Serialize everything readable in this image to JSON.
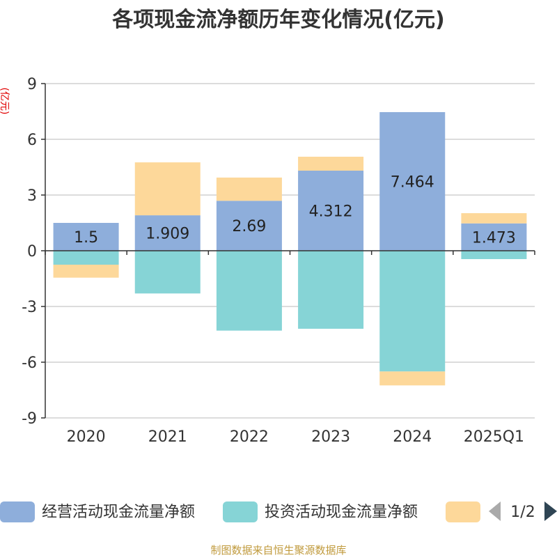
{
  "chart_data": {
    "type": "bar",
    "stacked": true,
    "title": "各项现金流净额历年变化情况(亿元)",
    "ylabel": "(亿元)",
    "categories": [
      "2020",
      "2021",
      "2022",
      "2023",
      "2024",
      "2025Q1"
    ],
    "ylim": [
      -9,
      9
    ],
    "yticks": [
      9,
      6,
      3,
      0,
      -3,
      -6,
      -9
    ],
    "grid": true,
    "series": [
      {
        "name": "经营活动现金流量净额",
        "color": "#8eaedb",
        "values": [
          1.5,
          1.909,
          2.69,
          4.312,
          7.464,
          1.473
        ]
      },
      {
        "name": "投资活动现金流量净额",
        "color": "#86d4d6",
        "values": [
          -0.75,
          -2.3,
          -4.3,
          -4.2,
          -6.5,
          -0.45
        ]
      },
      {
        "name": "",
        "color": "#fdd89a",
        "values": [
          -0.7,
          2.85,
          1.25,
          0.75,
          -0.75,
          0.55
        ]
      }
    ],
    "data_labels": [
      "1.5",
      "1.909",
      "2.69",
      "4.312",
      "7.464",
      "1.473"
    ],
    "legend": {
      "position": "bottom",
      "page": "1/2"
    },
    "source": "制图数据来自恒生聚源数据库"
  }
}
